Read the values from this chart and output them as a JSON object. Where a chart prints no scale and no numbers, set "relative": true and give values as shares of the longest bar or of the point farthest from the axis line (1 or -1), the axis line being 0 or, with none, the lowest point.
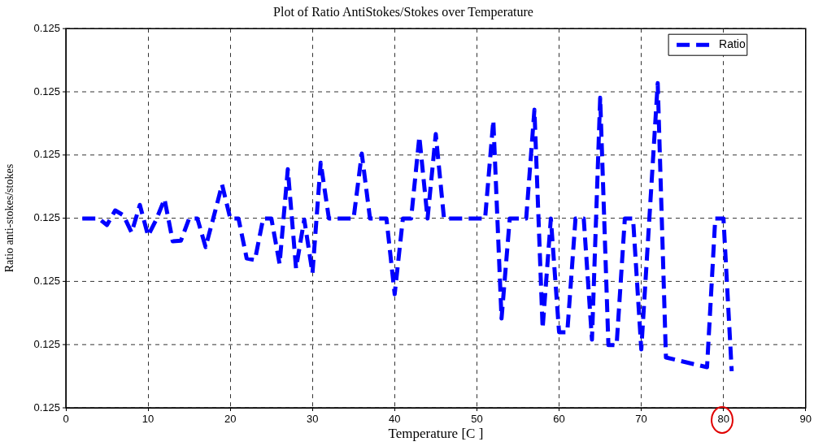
{
  "chart_data": {
    "type": "line",
    "title": "Plot of Ratio AntiStokes/Stokes over Temperature",
    "xlabel": "Temperature [C ]",
    "ylabel": "Ratio anti-stokes/stokes",
    "x": [
      2,
      3,
      4,
      5,
      6,
      7,
      8,
      9,
      10,
      11,
      12,
      13,
      14,
      15,
      16,
      17,
      18,
      19,
      20,
      21,
      22,
      23,
      24,
      25,
      26,
      27,
      28,
      29,
      30,
      31,
      32,
      33,
      34,
      35,
      36,
      37,
      38,
      39,
      40,
      41,
      42,
      43,
      44,
      45,
      46,
      47,
      48,
      49,
      50,
      51,
      52,
      53,
      54,
      55,
      56,
      57,
      58,
      59,
      60,
      61,
      62,
      63,
      64,
      65,
      66,
      67,
      68,
      69,
      70,
      71,
      72,
      73,
      78,
      79,
      80,
      81
    ],
    "series": [
      {
        "name": "Ratio",
        "color": "#0000ff",
        "values": [
          0.583,
          0.583,
          0.583,
          0.563,
          0.608,
          0.593,
          0.54,
          0.625,
          0.53,
          0.58,
          0.643,
          0.513,
          0.515,
          0.583,
          0.583,
          0.495,
          0.59,
          0.688,
          0.583,
          0.583,
          0.46,
          0.455,
          0.583,
          0.583,
          0.443,
          0.735,
          0.43,
          0.58,
          0.415,
          0.755,
          0.583,
          0.583,
          0.583,
          0.583,
          0.783,
          0.583,
          0.583,
          0.583,
          0.35,
          0.583,
          0.583,
          0.835,
          0.583,
          0.843,
          0.583,
          0.583,
          0.583,
          0.583,
          0.583,
          0.583,
          0.885,
          0.275,
          0.583,
          0.583,
          0.583,
          0.918,
          0.245,
          0.583,
          0.233,
          0.233,
          0.583,
          0.583,
          0.21,
          0.955,
          0.193,
          0.193,
          0.583,
          0.583,
          0.18,
          0.59,
          1,
          0.155,
          0.125,
          0.583,
          0.583,
          0.113
        ]
      }
    ],
    "relative": true,
    "annotations": [
      "0.125",
      "0.125",
      "0.125",
      "0.125",
      "0.125",
      "0.125",
      "0.125"
    ],
    "xlim": [
      0,
      90
    ],
    "xticks": [
      0,
      10,
      20,
      30,
      40,
      50,
      60,
      70,
      80,
      90
    ],
    "grid": true,
    "legend": "top right",
    "line_style": "dashed"
  }
}
